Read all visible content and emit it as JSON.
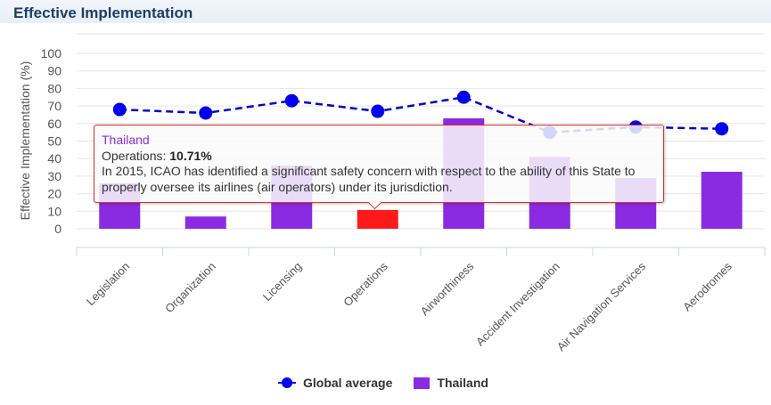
{
  "header": {
    "title": "Effective Implementation"
  },
  "chart_data": {
    "type": "bar",
    "title": "Effective Implementation",
    "ylabel": "Effective Implementation (%)",
    "xlabel": "",
    "ylim": [
      0,
      100
    ],
    "yticks": [
      "0",
      "10",
      "20",
      "30",
      "40",
      "50",
      "60",
      "70",
      "80",
      "90",
      "100"
    ],
    "categories": [
      "Legislation",
      "Organization",
      "Licensing",
      "Operations",
      "Airworthiness",
      "Accident Investigation",
      "Air Navigation Services",
      "Aerodromes"
    ],
    "series": [
      {
        "name": "Global average",
        "type": "line",
        "color": "#0000ee",
        "values": [
          68,
          66,
          73,
          67,
          75,
          55,
          58,
          57
        ]
      },
      {
        "name": "Thailand",
        "type": "bar",
        "color": "#8a2be2",
        "highlight_color": "#ff1a1a",
        "values": [
          26,
          7,
          36,
          10.71,
          63,
          41,
          29,
          32.5
        ]
      }
    ],
    "highlighted_index": 3,
    "legend": "bottom-center",
    "grid": true
  },
  "tooltip": {
    "series": "Thailand",
    "label": "Operations: ",
    "value": "10.71%",
    "note": "In 2015, ICAO has identified a significant safety concern with respect to the ability of this State to properly oversee its airlines (air operators) under its jurisdiction."
  },
  "legend": {
    "items": [
      "Global average",
      "Thailand"
    ]
  }
}
